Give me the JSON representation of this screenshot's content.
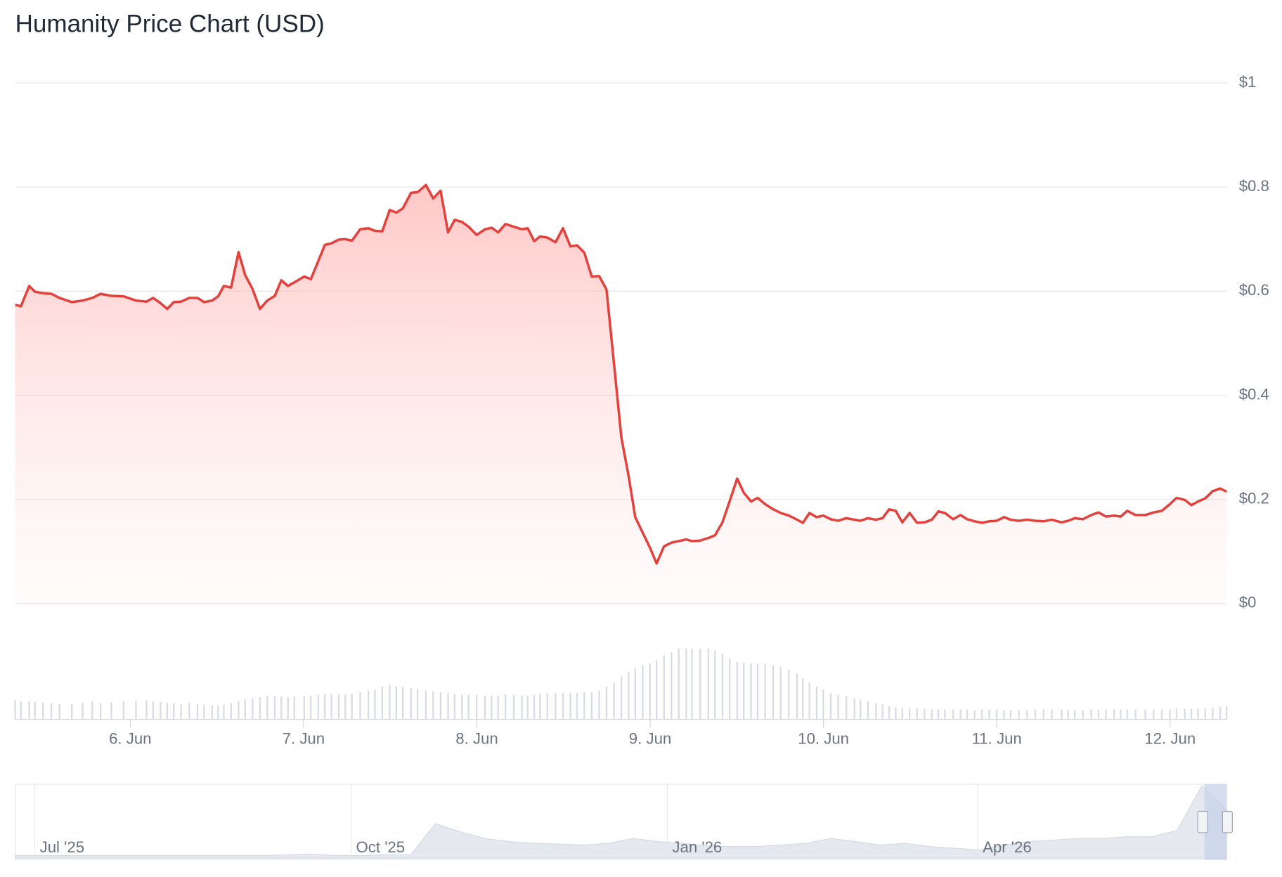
{
  "chart_data": {
    "type": "line",
    "title": "Humanity Price Chart (USD)",
    "x": [
      5.336,
      5.369,
      5.417,
      5.45,
      5.497,
      5.545,
      5.592,
      5.663,
      5.725,
      5.781,
      5.829,
      5.891,
      5.962,
      6.033,
      6.094,
      6.132,
      6.175,
      6.213,
      6.251,
      6.293,
      6.341,
      6.388,
      6.426,
      6.473,
      6.507,
      6.54,
      6.582,
      6.625,
      6.663,
      6.706,
      6.748,
      6.791,
      6.834,
      6.872,
      6.91,
      6.947,
      7.004,
      7.042,
      7.085,
      7.123,
      7.161,
      7.203,
      7.241,
      7.279,
      7.327,
      7.374,
      7.412,
      7.454,
      7.497,
      7.535,
      7.573,
      7.62,
      7.658,
      7.706,
      7.748,
      7.791,
      7.834,
      7.872,
      7.914,
      7.952,
      7.999,
      8.047,
      8.085,
      8.123,
      8.165,
      8.213,
      8.26,
      8.293,
      8.331,
      8.364,
      8.407,
      8.454,
      8.497,
      8.54,
      8.578,
      8.62,
      8.663,
      8.706,
      8.748,
      8.791,
      8.834,
      8.876,
      8.914,
      8.957,
      8.999,
      9.037,
      9.08,
      9.123,
      9.165,
      9.208,
      9.241,
      9.289,
      9.336,
      9.374,
      9.417,
      9.459,
      9.502,
      9.54,
      9.582,
      9.62,
      9.663,
      9.71,
      9.753,
      9.8,
      9.848,
      9.881,
      9.919,
      9.961,
      9.999,
      10.042,
      10.085,
      10.132,
      10.179,
      10.213,
      10.256,
      10.303,
      10.341,
      10.379,
      10.417,
      10.455,
      10.497,
      10.54,
      10.583,
      10.625,
      10.663,
      10.701,
      10.748,
      10.791,
      10.829,
      10.872,
      10.914,
      10.957,
      10.999,
      11.042,
      11.08,
      11.127,
      11.175,
      11.222,
      11.27,
      11.317,
      11.374,
      11.412,
      11.45,
      11.497,
      11.545,
      11.587,
      11.63,
      11.677,
      11.715,
      11.753,
      11.801,
      11.857,
      11.905,
      11.952,
      11.999,
      12.037,
      12.085,
      12.123,
      12.161,
      12.203,
      12.246,
      12.289,
      12.326
    ],
    "values": [
      0.574,
      0.571,
      0.61,
      0.599,
      0.596,
      0.595,
      0.587,
      0.579,
      0.582,
      0.587,
      0.595,
      0.591,
      0.59,
      0.582,
      0.58,
      0.587,
      0.577,
      0.566,
      0.579,
      0.58,
      0.587,
      0.587,
      0.579,
      0.582,
      0.59,
      0.61,
      0.607,
      0.675,
      0.631,
      0.604,
      0.566,
      0.582,
      0.591,
      0.621,
      0.61,
      0.617,
      0.628,
      0.623,
      0.658,
      0.689,
      0.692,
      0.699,
      0.7,
      0.697,
      0.719,
      0.721,
      0.716,
      0.715,
      0.756,
      0.751,
      0.759,
      0.789,
      0.79,
      0.804,
      0.778,
      0.793,
      0.713,
      0.737,
      0.733,
      0.724,
      0.708,
      0.719,
      0.722,
      0.713,
      0.729,
      0.724,
      0.719,
      0.721,
      0.696,
      0.705,
      0.703,
      0.694,
      0.721,
      0.686,
      0.688,
      0.674,
      0.628,
      0.629,
      0.603,
      0.461,
      0.319,
      0.244,
      0.166,
      0.136,
      0.107,
      0.077,
      0.11,
      0.117,
      0.12,
      0.123,
      0.12,
      0.121,
      0.126,
      0.131,
      0.156,
      0.197,
      0.24,
      0.213,
      0.196,
      0.203,
      0.191,
      0.181,
      0.174,
      0.169,
      0.161,
      0.155,
      0.174,
      0.166,
      0.169,
      0.162,
      0.159,
      0.164,
      0.161,
      0.159,
      0.164,
      0.161,
      0.164,
      0.181,
      0.178,
      0.156,
      0.174,
      0.155,
      0.156,
      0.161,
      0.177,
      0.174,
      0.162,
      0.17,
      0.162,
      0.158,
      0.155,
      0.158,
      0.159,
      0.166,
      0.161,
      0.159,
      0.161,
      0.159,
      0.158,
      0.161,
      0.156,
      0.159,
      0.164,
      0.162,
      0.17,
      0.175,
      0.167,
      0.169,
      0.167,
      0.178,
      0.17,
      0.17,
      0.175,
      0.178,
      0.191,
      0.203,
      0.199,
      0.189,
      0.196,
      0.202,
      0.216,
      0.221,
      0.215
    ],
    "color": "#e5413c",
    "volume": [
      24,
      22,
      22,
      21,
      20,
      20,
      19,
      19,
      20,
      22,
      20,
      21,
      22,
      22,
      23,
      22,
      21,
      20,
      20,
      19,
      20,
      19,
      18,
      17,
      17,
      18,
      20,
      22,
      24,
      26,
      27,
      28,
      28,
      28,
      27,
      28,
      28,
      29,
      30,
      31,
      31,
      30,
      30,
      31,
      33,
      35,
      36,
      40,
      42,
      40,
      39,
      38,
      37,
      35,
      34,
      33,
      32,
      31,
      30,
      30,
      30,
      29,
      29,
      29,
      30,
      30,
      29,
      29,
      30,
      31,
      32,
      32,
      32,
      32,
      32,
      33,
      33,
      35,
      40,
      45,
      52,
      58,
      62,
      66,
      68,
      72,
      78,
      82,
      86,
      86,
      86,
      86,
      86,
      84,
      80,
      74,
      70,
      69,
      68,
      68,
      68,
      66,
      64,
      60,
      56,
      50,
      45,
      40,
      36,
      32,
      30,
      28,
      26,
      24,
      22,
      20,
      18,
      16,
      15,
      14,
      14,
      13,
      13,
      12,
      12,
      12,
      12,
      12,
      12,
      11,
      12,
      12,
      12,
      11,
      11,
      11,
      11,
      12,
      12,
      12,
      12,
      11,
      11,
      11,
      12,
      12,
      12,
      12,
      12,
      12,
      12,
      12,
      12,
      12,
      12,
      13,
      13,
      13,
      13,
      14,
      14,
      15,
      16
    ],
    "volume_color": "#d9dde3",
    "xlim": [
      5.336,
      12.326
    ],
    "xticks": [
      {
        "value": 6,
        "label": "6. Jun"
      },
      {
        "value": 7,
        "label": "7. Jun"
      },
      {
        "value": 8,
        "label": "8. Jun"
      },
      {
        "value": 9,
        "label": "9. Jun"
      },
      {
        "value": 10,
        "label": "10. Jun"
      },
      {
        "value": 11,
        "label": "11. Jun"
      },
      {
        "value": 12,
        "label": "12. Jun"
      }
    ],
    "ylim": [
      0,
      1
    ],
    "yticks": [
      {
        "value": 0,
        "label": "$0"
      },
      {
        "value": 0.2,
        "label": "$0.2"
      },
      {
        "value": 0.4,
        "label": "$0.4"
      },
      {
        "value": 0.6,
        "label": "$0.6"
      },
      {
        "value": 0.8,
        "label": "$0.8"
      },
      {
        "value": 1,
        "label": "$1"
      }
    ],
    "grid": true,
    "navigator": {
      "labels": [
        "Jul '25",
        "Oct '25",
        "Jan '26",
        "Apr '26"
      ],
      "values": [
        3,
        3,
        3,
        3,
        3,
        3,
        3,
        3,
        3,
        3,
        3,
        4,
        5,
        3,
        3,
        4,
        4,
        42,
        32,
        24,
        20,
        18,
        17,
        16,
        18,
        24,
        20,
        18,
        15,
        14,
        14,
        16,
        18,
        24,
        20,
        16,
        18,
        14,
        12,
        10,
        16,
        20,
        22,
        24,
        24,
        26,
        26,
        34,
        88,
        60
      ]
    }
  }
}
